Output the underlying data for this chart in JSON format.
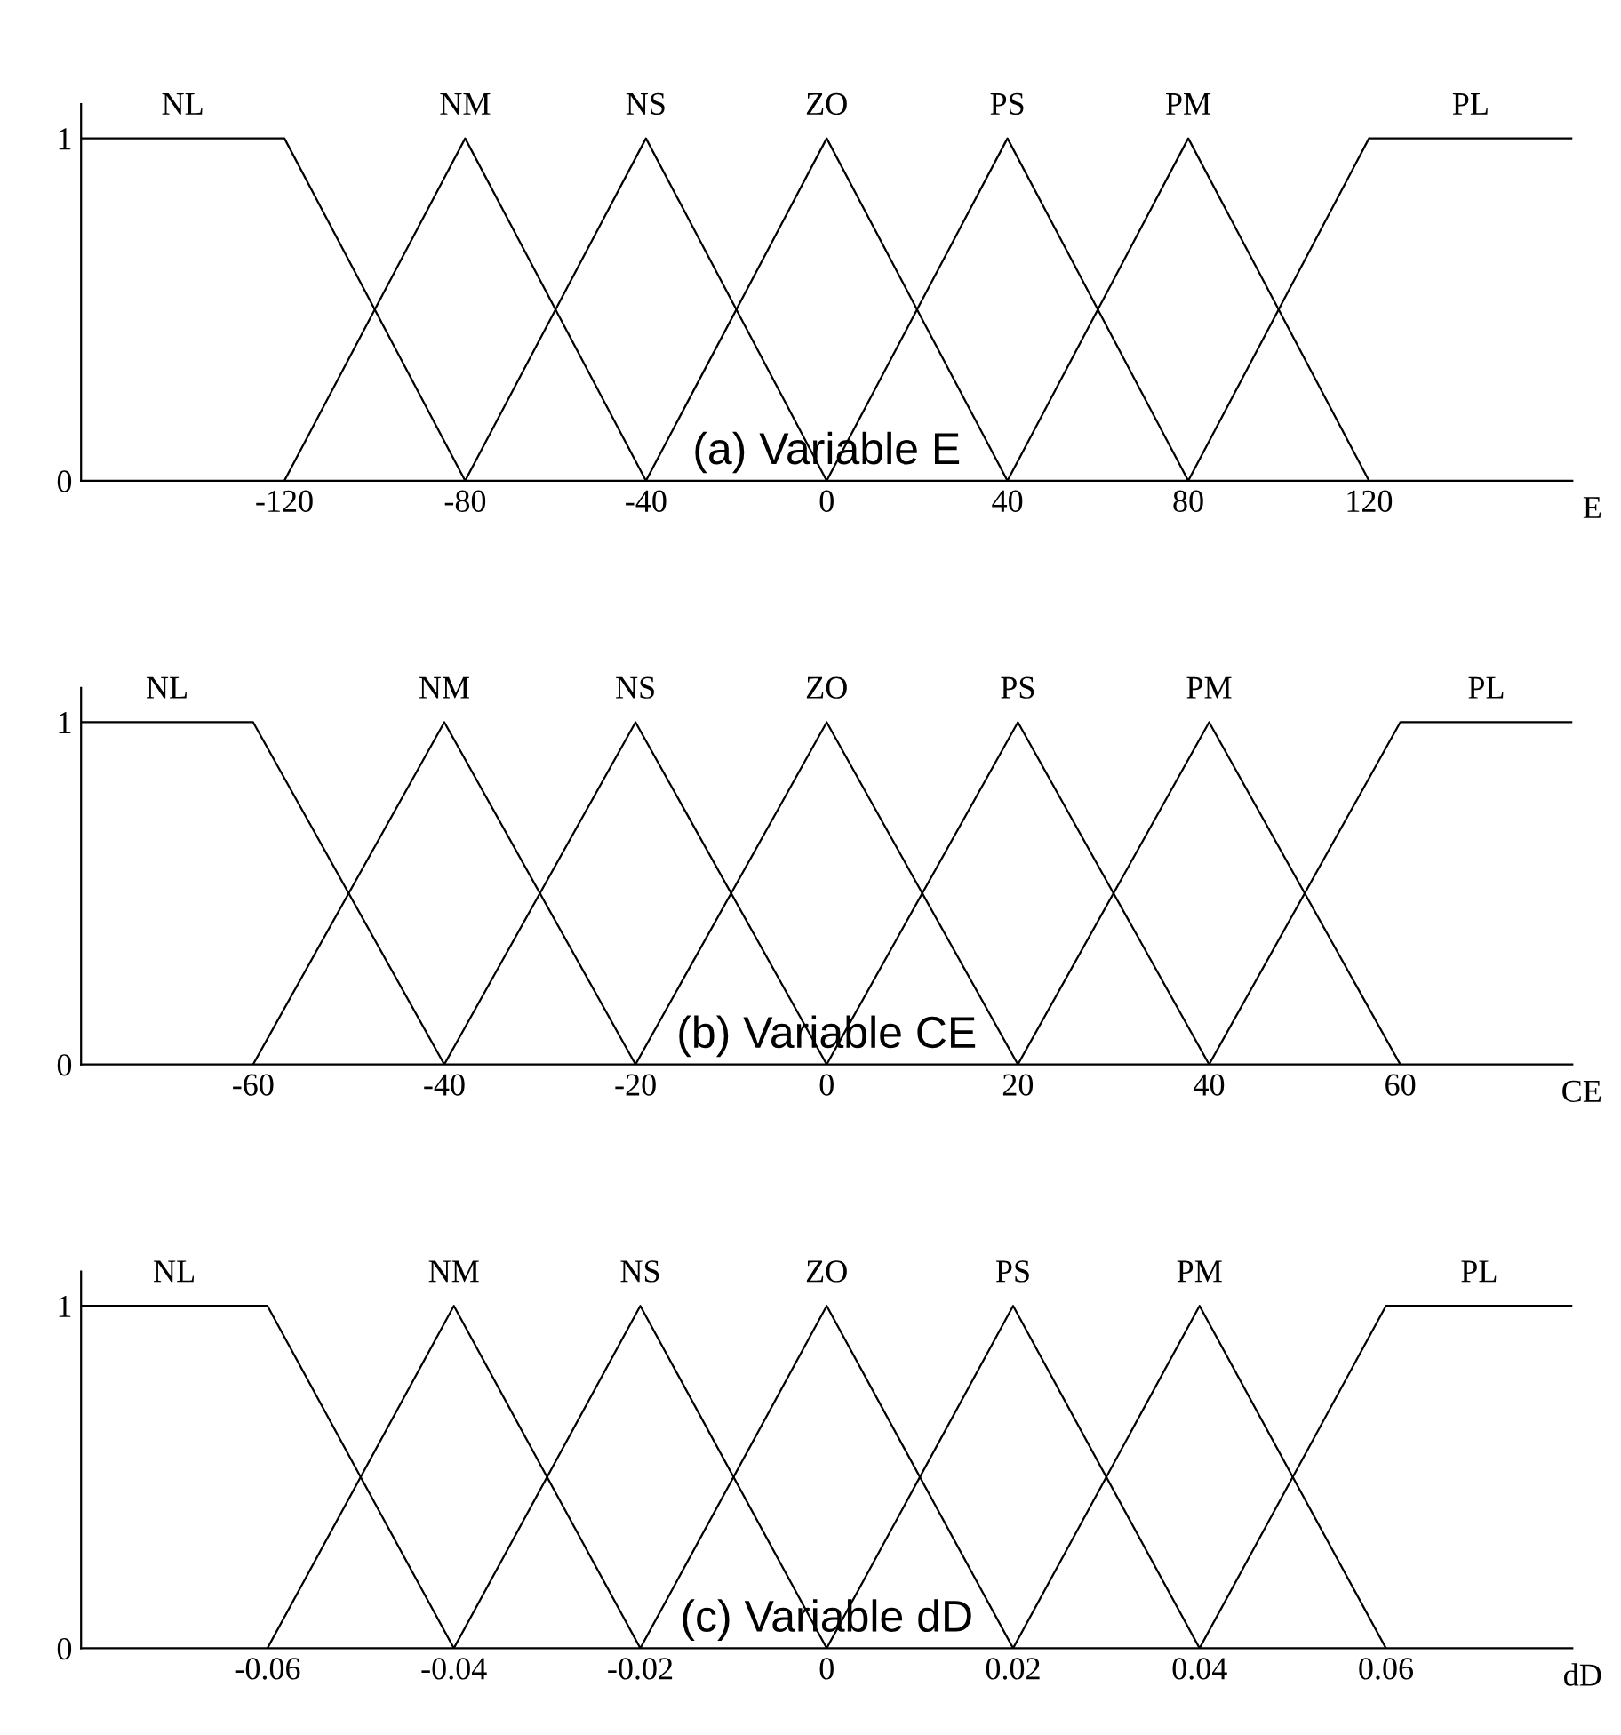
{
  "chart_data": [
    {
      "type": "line",
      "title": "(a) Variable E",
      "xlabel": "E",
      "xlim": [
        -165,
        165
      ],
      "ylim": [
        0,
        1.1
      ],
      "xticks": [
        -120,
        -80,
        -40,
        0,
        40,
        80,
        120
      ],
      "yticks": [
        0,
        1
      ],
      "grid": false,
      "legend": false,
      "marker": "none",
      "line_style": "solid",
      "series": [
        {
          "name": "NL",
          "color": "#000000",
          "x": [
            -165,
            -120,
            -80
          ],
          "values": [
            1,
            1,
            0
          ]
        },
        {
          "name": "NM",
          "color": "#000000",
          "x": [
            -120,
            -80,
            -40
          ],
          "values": [
            0,
            1,
            0
          ]
        },
        {
          "name": "NS",
          "color": "#000000",
          "x": [
            -80,
            -40,
            0
          ],
          "values": [
            0,
            1,
            0
          ]
        },
        {
          "name": "ZO",
          "color": "#000000",
          "x": [
            -40,
            0,
            40
          ],
          "values": [
            0,
            1,
            0
          ]
        },
        {
          "name": "PS",
          "color": "#000000",
          "x": [
            0,
            40,
            80
          ],
          "values": [
            0,
            1,
            0
          ]
        },
        {
          "name": "PM",
          "color": "#000000",
          "x": [
            40,
            80,
            120
          ],
          "values": [
            0,
            1,
            0
          ]
        },
        {
          "name": "PL",
          "color": "#000000",
          "x": [
            80,
            120,
            165
          ],
          "values": [
            0,
            1,
            1
          ]
        }
      ]
    },
    {
      "type": "line",
      "title": "(b) Variable CE",
      "xlabel": "CE",
      "xlim": [
        -78,
        78
      ],
      "ylim": [
        0,
        1.1
      ],
      "xticks": [
        -60,
        -40,
        -20,
        0,
        20,
        40,
        60
      ],
      "yticks": [
        0,
        1
      ],
      "grid": false,
      "legend": false,
      "marker": "none",
      "line_style": "solid",
      "series": [
        {
          "name": "NL",
          "color": "#000000",
          "x": [
            -78,
            -60,
            -40
          ],
          "values": [
            1,
            1,
            0
          ]
        },
        {
          "name": "NM",
          "color": "#000000",
          "x": [
            -60,
            -40,
            -20
          ],
          "values": [
            0,
            1,
            0
          ]
        },
        {
          "name": "NS",
          "color": "#000000",
          "x": [
            -40,
            -20,
            0
          ],
          "values": [
            0,
            1,
            0
          ]
        },
        {
          "name": "ZO",
          "color": "#000000",
          "x": [
            -20,
            0,
            20
          ],
          "values": [
            0,
            1,
            0
          ]
        },
        {
          "name": "PS",
          "color": "#000000",
          "x": [
            0,
            20,
            40
          ],
          "values": [
            0,
            1,
            0
          ]
        },
        {
          "name": "PM",
          "color": "#000000",
          "x": [
            20,
            40,
            60
          ],
          "values": [
            0,
            1,
            0
          ]
        },
        {
          "name": "PL",
          "color": "#000000",
          "x": [
            40,
            60,
            78
          ],
          "values": [
            0,
            1,
            1
          ]
        }
      ]
    },
    {
      "type": "line",
      "title": "(c) Variable dD",
      "xlabel": "dD",
      "xlim": [
        -0.08,
        0.08
      ],
      "ylim": [
        0,
        1.1
      ],
      "xticks": [
        -0.06,
        -0.04,
        -0.02,
        0,
        0.02,
        0.04,
        0.06
      ],
      "yticks": [
        0,
        1
      ],
      "grid": false,
      "legend": false,
      "marker": "none",
      "line_style": "solid",
      "series": [
        {
          "name": "NL",
          "color": "#000000",
          "x": [
            -0.08,
            -0.06,
            -0.04
          ],
          "values": [
            1,
            1,
            0
          ]
        },
        {
          "name": "NM",
          "color": "#000000",
          "x": [
            -0.06,
            -0.04,
            -0.02
          ],
          "values": [
            0,
            1,
            0
          ]
        },
        {
          "name": "NS",
          "color": "#000000",
          "x": [
            -0.04,
            -0.02,
            0
          ],
          "values": [
            0,
            1,
            0
          ]
        },
        {
          "name": "ZO",
          "color": "#000000",
          "x": [
            -0.02,
            0,
            0.02
          ],
          "values": [
            0,
            1,
            0
          ]
        },
        {
          "name": "PS",
          "color": "#000000",
          "x": [
            0,
            0.02,
            0.04
          ],
          "values": [
            0,
            1,
            0
          ]
        },
        {
          "name": "PM",
          "color": "#000000",
          "x": [
            0.02,
            0.04,
            0.06
          ],
          "values": [
            0,
            1,
            0
          ]
        },
        {
          "name": "PL",
          "color": "#000000",
          "x": [
            0.04,
            0.06,
            0.08
          ],
          "values": [
            0,
            1,
            1
          ]
        }
      ]
    }
  ]
}
